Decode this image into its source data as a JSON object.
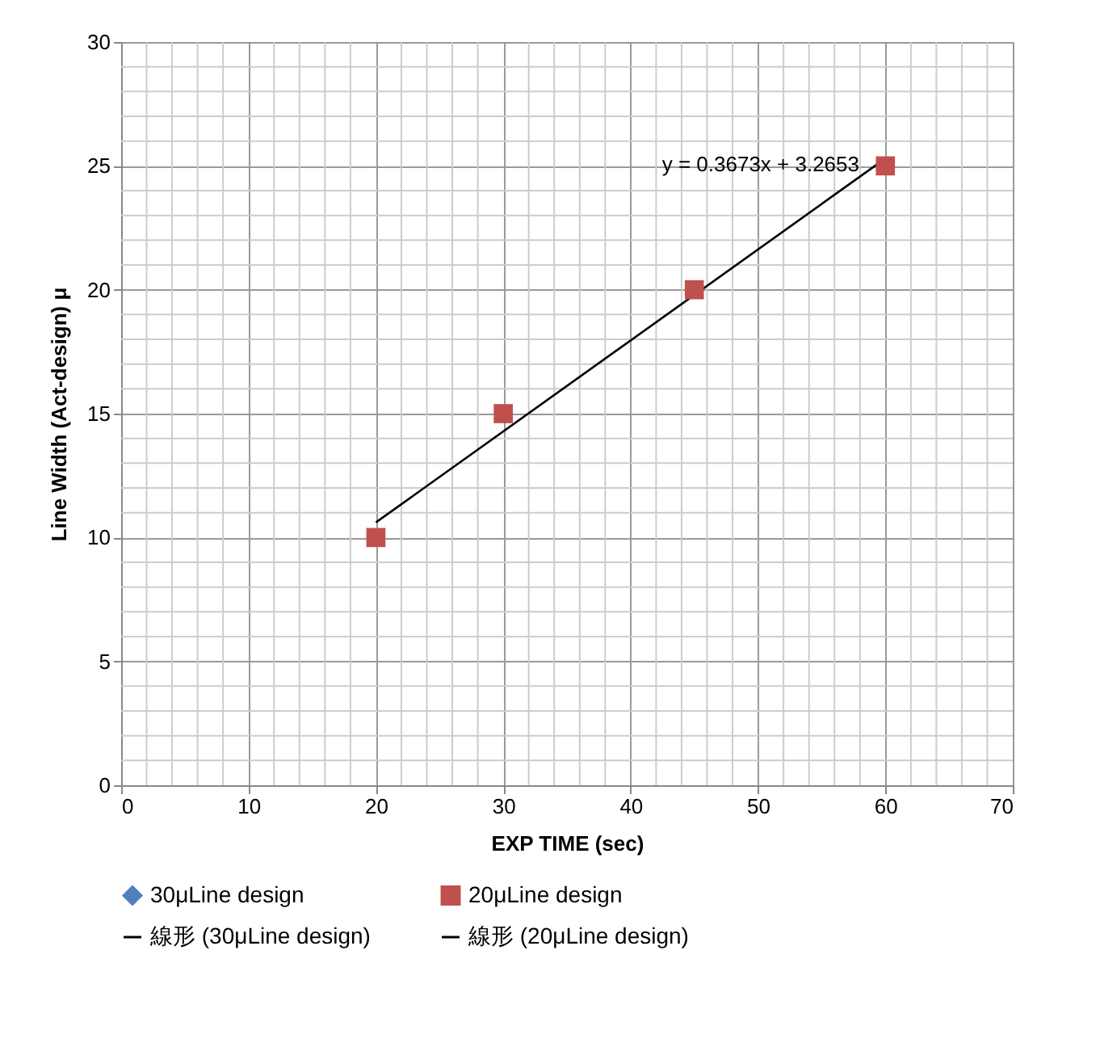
{
  "chart_data": {
    "type": "scatter",
    "xlabel": "EXP TIME   (sec)",
    "ylabel": "Line Width (Act-design) μ",
    "xlim": [
      0,
      70
    ],
    "ylim": [
      0,
      30
    ],
    "xticks": [
      0,
      {
        "value": 2,
        "label": null
      },
      {
        "value": 4,
        "label": null
      },
      {
        "value": 6,
        "label": null
      },
      {
        "value": 8,
        "label": null
      },
      10,
      {
        "value": 12,
        "label": null
      },
      {
        "value": 14,
        "label": null
      },
      {
        "value": 16,
        "label": null
      },
      {
        "value": 18,
        "label": null
      },
      20,
      {
        "value": 22,
        "label": null
      },
      {
        "value": 24,
        "label": null
      },
      {
        "value": 26,
        "label": null
      },
      {
        "value": 28,
        "label": null
      },
      30,
      {
        "value": 32,
        "label": null
      },
      {
        "value": 34,
        "label": null
      },
      {
        "value": 36,
        "label": null
      },
      {
        "value": 38,
        "label": null
      },
      40,
      {
        "value": 42,
        "label": null
      },
      {
        "value": 44,
        "label": null
      },
      {
        "value": 46,
        "label": null
      },
      {
        "value": 48,
        "label": null
      },
      50,
      {
        "value": 52,
        "label": null
      },
      {
        "value": 54,
        "label": null
      },
      {
        "value": 56,
        "label": null
      },
      {
        "value": 58,
        "label": null
      },
      60,
      {
        "value": 62,
        "label": null
      },
      {
        "value": 64,
        "label": null
      },
      {
        "value": 66,
        "label": null
      },
      {
        "value": 68,
        "label": null
      },
      70
    ],
    "yticks": [
      0,
      {
        "value": 1,
        "label": null
      },
      {
        "value": 2,
        "label": null
      },
      {
        "value": 3,
        "label": null
      },
      {
        "value": 4,
        "label": null
      },
      5,
      {
        "value": 6,
        "label": null
      },
      {
        "value": 7,
        "label": null
      },
      {
        "value": 8,
        "label": null
      },
      {
        "value": 9,
        "label": null
      },
      10,
      {
        "value": 11,
        "label": null
      },
      {
        "value": 12,
        "label": null
      },
      {
        "value": 13,
        "label": null
      },
      {
        "value": 14,
        "label": null
      },
      15,
      {
        "value": 16,
        "label": null
      },
      {
        "value": 17,
        "label": null
      },
      {
        "value": 18,
        "label": null
      },
      {
        "value": 19,
        "label": null
      },
      20,
      {
        "value": 21,
        "label": null
      },
      {
        "value": 22,
        "label": null
      },
      {
        "value": 23,
        "label": null
      },
      {
        "value": 24,
        "label": null
      },
      25,
      {
        "value": 26,
        "label": null
      },
      {
        "value": 27,
        "label": null
      },
      {
        "value": 28,
        "label": null
      },
      {
        "value": 29,
        "label": null
      },
      30
    ],
    "grid": true,
    "legend": "bottom",
    "x": [
      20,
      30,
      45,
      60
    ],
    "series": [
      {
        "name": "30μLine design",
        "color": "#4f81bd",
        "marker": "diamond",
        "values": [
          null,
          null,
          null,
          null
        ]
      },
      {
        "name": "20μLine design",
        "color": "#c0504d",
        "marker": "square",
        "values": [
          10,
          15,
          20,
          25
        ]
      },
      {
        "name": "線形 (30μLine design)",
        "type": "line",
        "color": "#000000",
        "values": [
          null,
          null,
          null,
          null
        ]
      },
      {
        "name": "線形 (20μLine design)",
        "type": "line",
        "color": "#000000",
        "x": [
          20,
          60
        ],
        "values": [
          10.61,
          25.3
        ]
      }
    ],
    "annotations": [
      "y = 0.3673x + 3.2653"
    ]
  }
}
